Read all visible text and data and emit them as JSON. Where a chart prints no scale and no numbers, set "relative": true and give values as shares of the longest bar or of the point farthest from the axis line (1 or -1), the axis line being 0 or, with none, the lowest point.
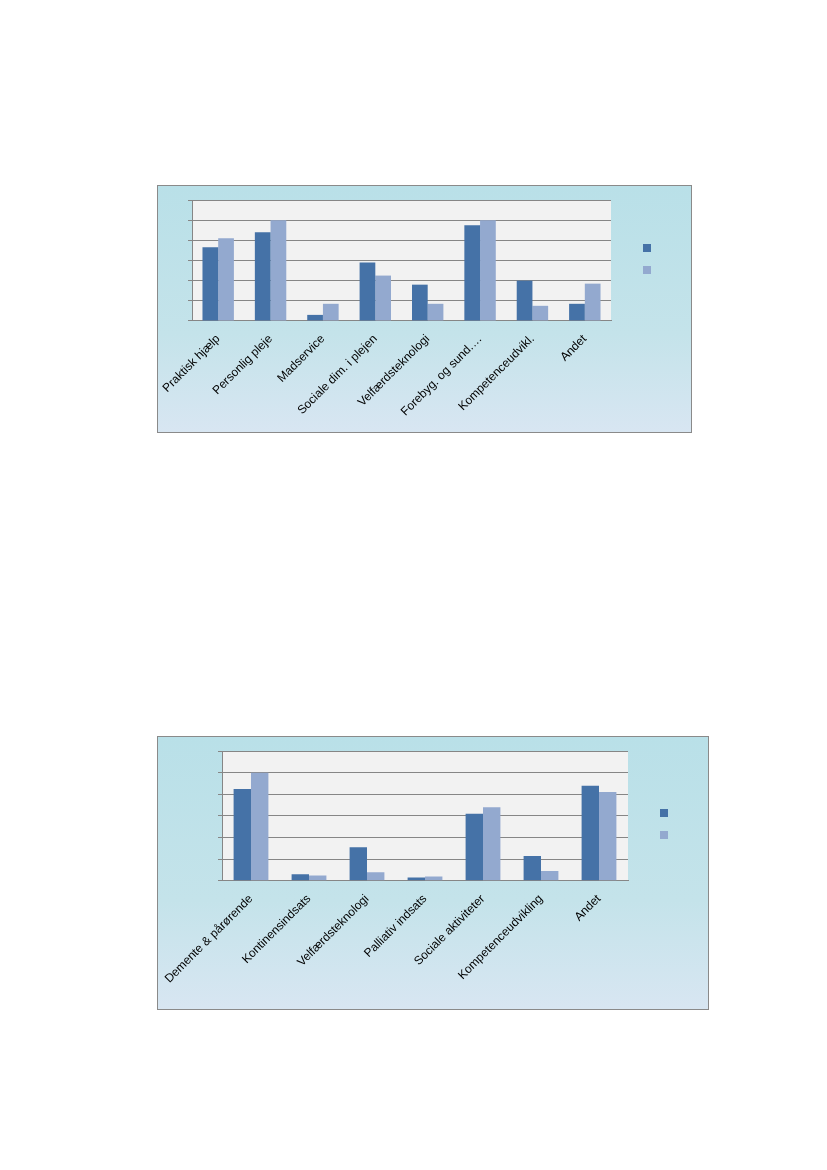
{
  "chart_data": [
    {
      "type": "bar",
      "relative": true,
      "grid": "y",
      "categories": [
        "Praktisk hjælp",
        "Personlig pleje",
        "Madservice",
        "Sociale dim. i plejen",
        "Velfærdsteknologi",
        "Forebyg. og sund.…",
        "Kompetenceudvikl.",
        "Andet"
      ],
      "series": [
        {
          "color": "#4572a7",
          "values": [
            0.73,
            0.88,
            0.06,
            0.58,
            0.36,
            0.95,
            0.4,
            0.17
          ]
        },
        {
          "color": "#93a9cf",
          "values": [
            0.82,
            1,
            0.17,
            0.45,
            0.17,
            1,
            0.15,
            0.37
          ]
        }
      ]
    },
    {
      "type": "bar",
      "relative": true,
      "grid": "y",
      "categories": [
        "Demente & pårørende",
        "Kontinensindsats",
        "Velfærdsteknologi",
        "Palliativ indsats",
        "Sociale aktiviteter",
        "Kompetenceudvikling",
        "Andet"
      ],
      "series": [
        {
          "color": "#4572a7",
          "values": [
            0.85,
            0.06,
            0.31,
            0.03,
            0.62,
            0.23,
            0.88
          ]
        },
        {
          "color": "#93a9cf",
          "values": [
            1,
            0.05,
            0.08,
            0.04,
            0.68,
            0.09,
            0.82
          ]
        }
      ]
    }
  ]
}
